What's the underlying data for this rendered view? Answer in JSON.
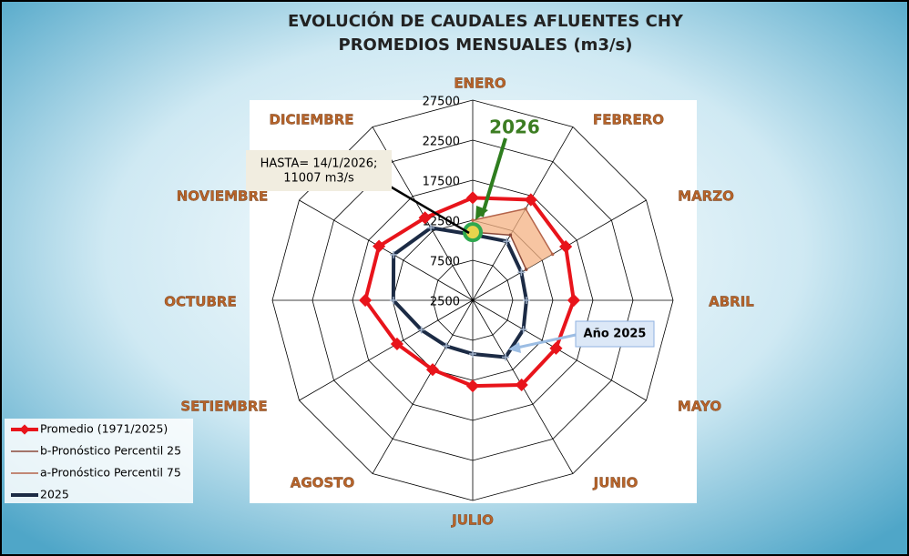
{
  "chart_data": {
    "type": "radar",
    "title": "EVOLUCIÓN DE CAUDALES AFLUENTES CHY",
    "subtitle": "PROMEDIOS MENSUALES (m3/s)",
    "categories": [
      "ENERO",
      "FEBRERO",
      "MARZO",
      "ABRIL",
      "MAYO",
      "JUNIO",
      "JULIO",
      "AGOSTO",
      "SETIEMBRE",
      "OCTUBRE",
      "NOVIEMBRE",
      "DICIEMBRE"
    ],
    "ylim": [
      2500,
      27500
    ],
    "yticks": [
      2500,
      7500,
      12500,
      17500,
      22500,
      27500
    ],
    "grid": true,
    "legend": "bottom-left",
    "series": [
      {
        "name": "Promedio (1971/2025)",
        "color": "#e8141b",
        "values": [
          15300,
          17000,
          15900,
          15100,
          14500,
          14700,
          13200,
          12500,
          13400,
          15900,
          16000,
          14400
        ]
      },
      {
        "name": "b-Pronóstico Percentil 25",
        "color": "#8b4a3a",
        "values": [
          11007,
          11900,
          10200,
          null,
          null,
          null,
          null,
          null,
          null,
          null,
          null,
          null
        ]
      },
      {
        "name": "a-Pronóstico Percentil 75",
        "color": "#b5654b",
        "values": [
          12500,
          15700,
          14000,
          null,
          null,
          null,
          null,
          null,
          null,
          null,
          null,
          null
        ]
      },
      {
        "name": "2025",
        "color": "#1c2b45",
        "values": [
          10700,
          11000,
          9500,
          9200,
          9800,
          10700,
          9200,
          9100,
          9900,
          12400,
          13900,
          12950
        ]
      }
    ],
    "annotations": [
      "2026",
      "HASTA= 14/1/2026;",
      "11007 m3/s",
      "Año 2025"
    ]
  }
}
